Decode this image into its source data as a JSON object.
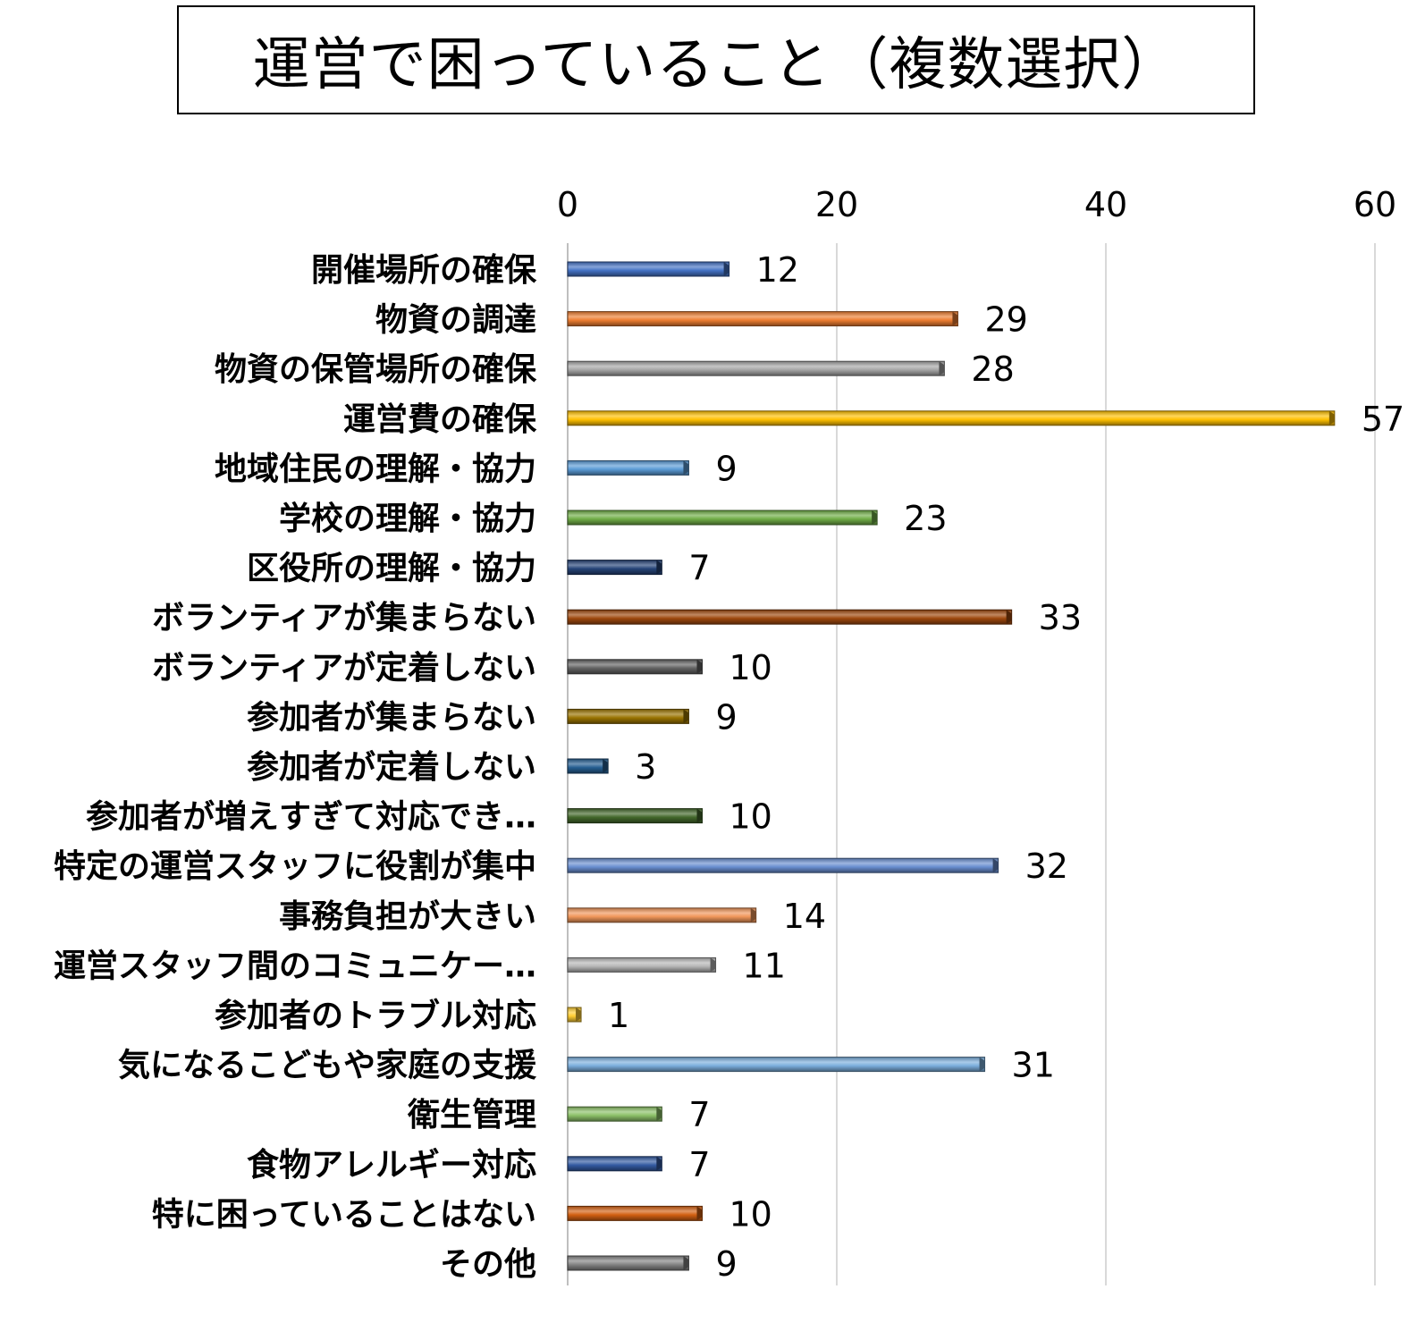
{
  "chart_data": {
    "type": "bar",
    "orientation": "horizontal",
    "title": "運営で困っていること（複数選択）",
    "categories": [
      "開催場所の確保",
      "物資の調達",
      "物資の保管場所の確保",
      "運営費の確保",
      "地域住民の理解・協力",
      "学校の理解・協力",
      "区役所の理解・協力",
      "ボランティアが集まらない",
      "ボランティアが定着しない",
      "参加者が集まらない",
      "参加者が定着しない",
      "参加者が増えすぎて対応でき…",
      "特定の運営スタッフに役割が集中",
      "事務負担が大きい",
      "運営スタッフ間のコミュニケー…",
      "参加者のトラブル対応",
      "気になるこどもや家庭の支援",
      "衛生管理",
      "食物アレルギー対応",
      "特に困っていることはない",
      "その他"
    ],
    "values": [
      12,
      29,
      28,
      57,
      9,
      23,
      7,
      33,
      10,
      9,
      3,
      10,
      32,
      14,
      11,
      1,
      31,
      7,
      7,
      10,
      9
    ],
    "colors": [
      "#4472C4",
      "#ED7D31",
      "#A5A5A5",
      "#FFC000",
      "#5B9BD5",
      "#70AD47",
      "#264478",
      "#9E480E",
      "#636363",
      "#997300",
      "#255E91",
      "#43682B",
      "#698ED0",
      "#F1975A",
      "#B7B7B7",
      "#FFCD33",
      "#7CAFDD",
      "#8CC168",
      "#335AA1",
      "#D26012",
      "#848484"
    ],
    "xlim": [
      0,
      60
    ],
    "xticks": [
      0,
      20,
      40,
      60
    ],
    "axis_position": "top",
    "grid": true,
    "data_labels": true,
    "legend": "none"
  }
}
